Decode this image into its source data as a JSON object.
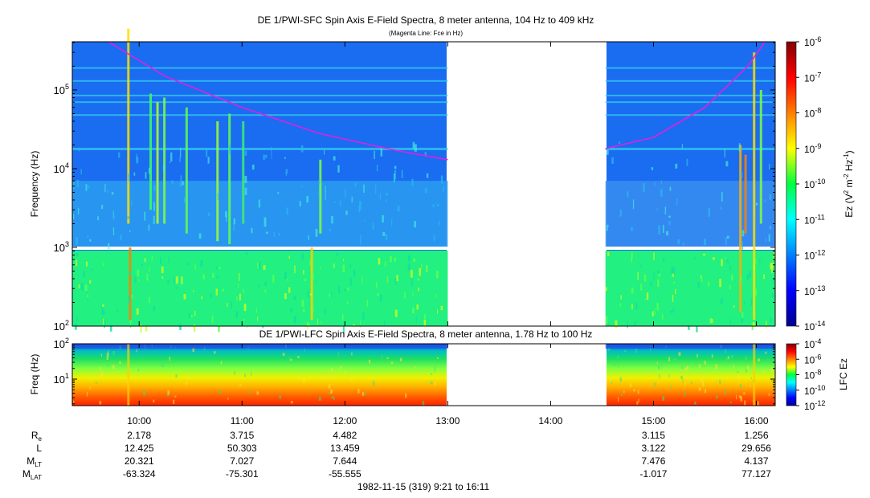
{
  "chart_data": [
    {
      "type": "heatmap",
      "title": "DE 1/PWI-SFC  Spin Axis E-Field Spectra, 8 meter antenna, 104 Hz to 409 kHz",
      "subtitle": "(Magenta Line: Fce in Hz)",
      "ylabel": "Frequency (Hz)",
      "yscale": "log",
      "ylim": [
        100,
        409000
      ],
      "y_ticks": [
        {
          "value": 100,
          "base": "10",
          "exp": "2"
        },
        {
          "value": 1000,
          "base": "10",
          "exp": "3"
        },
        {
          "value": 10000,
          "base": "10",
          "exp": "4"
        },
        {
          "value": 100000,
          "base": "10",
          "exp": "5"
        }
      ],
      "xlim": [
        "09:21",
        "16:11"
      ],
      "data_gaps": [
        [
          "13:00",
          "14:32"
        ]
      ],
      "colorbar": {
        "label_main": "Ez (V",
        "label_sup1": "2",
        "label_mid": " m",
        "label_sup2": "-2",
        "label_tail": " Hz",
        "label_sup3": "-1",
        "label_end": ")",
        "scale": "log",
        "range": [
          1e-14,
          1e-06
        ],
        "ticks": [
          {
            "value": 1e-06,
            "base": "10",
            "exp": "-6"
          },
          {
            "value": 1e-07,
            "base": "10",
            "exp": "-7"
          },
          {
            "value": 1e-08,
            "base": "10",
            "exp": "-8"
          },
          {
            "value": 1e-09,
            "base": "10",
            "exp": "-9"
          },
          {
            "value": 1e-10,
            "base": "10",
            "exp": "-10"
          },
          {
            "value": 1e-11,
            "base": "10",
            "exp": "-11"
          },
          {
            "value": 1e-12,
            "base": "10",
            "exp": "-12"
          },
          {
            "value": 1e-13,
            "base": "10",
            "exp": "-13"
          },
          {
            "value": 1e-14,
            "base": "10",
            "exp": "-14"
          }
        ]
      },
      "fce_line": {
        "color": "#e020e0",
        "segments": [
          [
            [
              "09:42",
              409000
            ],
            [
              "10:15",
              150000
            ],
            [
              "11:00",
              60000
            ],
            [
              "11:45",
              28000
            ],
            [
              "12:30",
              17000
            ],
            [
              "13:00",
              13000
            ]
          ],
          [
            [
              "14:32",
              18000
            ],
            [
              "15:00",
              25000
            ],
            [
              "15:30",
              60000
            ],
            [
              "15:55",
              200000
            ],
            [
              "16:05",
              409000
            ]
          ]
        ]
      }
    },
    {
      "type": "heatmap",
      "title": "DE 1/PWI-LFC  Spin Axis E-Field Spectra, 8 meter antenna, 1.78 Hz to 100 Hz",
      "ylabel": "Freq (Hz)",
      "yscale": "log",
      "ylim": [
        1.78,
        100
      ],
      "y_ticks": [
        {
          "value": 10,
          "base": "10",
          "exp": "1"
        },
        {
          "value": 100,
          "base": "10",
          "exp": "2"
        }
      ],
      "xlim": [
        "09:21",
        "16:11"
      ],
      "data_gaps": [
        [
          "13:00",
          "14:32"
        ]
      ],
      "colorbar": {
        "label": "LFC Ez",
        "scale": "log",
        "range": [
          1e-12,
          0.0001
        ],
        "ticks": [
          {
            "value": 0.0001,
            "base": "10",
            "exp": "-4"
          },
          {
            "value": 1e-06,
            "base": "10",
            "exp": "-6"
          },
          {
            "value": 1e-08,
            "base": "10",
            "exp": "-8"
          },
          {
            "value": 1e-10,
            "base": "10",
            "exp": "-10"
          },
          {
            "value": 1e-12,
            "base": "10",
            "exp": "-12"
          }
        ]
      }
    }
  ],
  "time_axis": {
    "ticks": [
      "10:00",
      "11:00",
      "12:00",
      "13:00",
      "14:00",
      "15:00",
      "16:00"
    ],
    "ephemeris_labels": [
      {
        "main": "R",
        "sub": "e"
      },
      {
        "main": "L",
        "sub": ""
      },
      {
        "main": "M",
        "sub": "LT"
      },
      {
        "main": "M",
        "sub": "LAT"
      }
    ],
    "ephemeris": [
      {
        "time": "10:00",
        "Re": "2.178",
        "L": "12.425",
        "MLT": "20.321",
        "MLAT": "-63.324"
      },
      {
        "time": "11:00",
        "Re": "3.715",
        "L": "50.303",
        "MLT": "7.027",
        "MLAT": "-75.301"
      },
      {
        "time": "12:00",
        "Re": "4.482",
        "L": "13.459",
        "MLT": "7.644",
        "MLAT": "-55.555"
      },
      {
        "time": "15:00",
        "Re": "3.115",
        "L": "3.122",
        "MLT": "7.476",
        "MLAT": "-1.017"
      },
      {
        "time": "16:00",
        "Re": "1.256",
        "L": "29.656",
        "MLT": "4.137",
        "MLAT": "77.127"
      }
    ],
    "footer": "1982-11-15 (319) 9:21 to 16:11"
  }
}
